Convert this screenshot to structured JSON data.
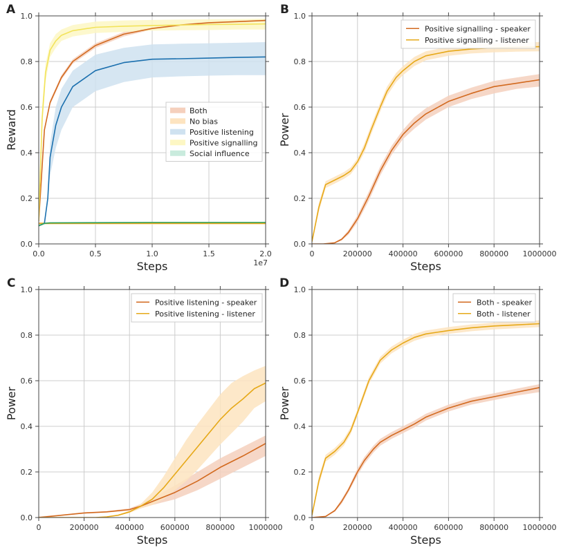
{
  "chart_data": [
    {
      "panel": "A",
      "type": "line",
      "xlabel": "Steps",
      "ylabel": "Reward",
      "x_offset_label": "1e7",
      "xlim": [
        0,
        2.0
      ],
      "ylim": [
        0,
        1.0
      ],
      "xticks": [
        "0.0",
        "0.5",
        "1.0",
        "1.5",
        "2.0"
      ],
      "yticks": [
        "0.0",
        "0.2",
        "0.4",
        "0.6",
        "0.8",
        "1.0"
      ],
      "grid": true,
      "legend_position": "center-right",
      "legend": [
        {
          "label": "Both",
          "color": "#f5d0bd"
        },
        {
          "label": "No bias",
          "color": "#fde4c0"
        },
        {
          "label": "Positive listening",
          "color": "#cfe2f0"
        },
        {
          "label": "Positive signalling",
          "color": "#fdf7c4"
        },
        {
          "label": "Social influence",
          "color": "#c9ebdd"
        }
      ],
      "series": [
        {
          "name": "Both",
          "color": "#d2691e",
          "band": "#f5d0bd",
          "x": [
            0,
            0.05,
            0.1,
            0.2,
            0.3,
            0.5,
            0.75,
            1.0,
            1.25,
            1.5,
            1.75,
            2.0
          ],
          "y": [
            0.1,
            0.5,
            0.62,
            0.73,
            0.8,
            0.87,
            0.92,
            0.945,
            0.96,
            0.97,
            0.975,
            0.98
          ],
          "lo": [
            0.09,
            0.49,
            0.61,
            0.72,
            0.79,
            0.86,
            0.91,
            0.94,
            0.955,
            0.965,
            0.97,
            0.975
          ],
          "hi": [
            0.11,
            0.51,
            0.63,
            0.74,
            0.81,
            0.88,
            0.93,
            0.95,
            0.965,
            0.975,
            0.98,
            0.985
          ]
        },
        {
          "name": "No bias",
          "color": "#e6a817",
          "band": "#fde4c0",
          "x": [
            0,
            2.0
          ],
          "y": [
            0.09,
            0.09
          ],
          "lo": [
            0.085,
            0.085
          ],
          "hi": [
            0.095,
            0.095
          ]
        },
        {
          "name": "Positive listening",
          "color": "#1a6fae",
          "band": "#cfe2f0",
          "x": [
            0,
            0.05,
            0.08,
            0.1,
            0.15,
            0.2,
            0.3,
            0.5,
            0.75,
            1.0,
            1.25,
            1.5,
            1.75,
            2.0
          ],
          "y": [
            0.08,
            0.09,
            0.2,
            0.38,
            0.52,
            0.6,
            0.69,
            0.76,
            0.795,
            0.81,
            0.812,
            0.815,
            0.818,
            0.82
          ],
          "lo": [
            0.075,
            0.085,
            0.18,
            0.3,
            0.42,
            0.5,
            0.6,
            0.67,
            0.71,
            0.73,
            0.735,
            0.738,
            0.74,
            0.74
          ],
          "hi": [
            0.085,
            0.095,
            0.22,
            0.44,
            0.6,
            0.68,
            0.76,
            0.83,
            0.86,
            0.875,
            0.878,
            0.88,
            0.882,
            0.885
          ]
        },
        {
          "name": "Positive signalling",
          "color": "#f2e35a",
          "band": "#fdf7c4",
          "x": [
            0,
            0.03,
            0.06,
            0.1,
            0.15,
            0.2,
            0.3,
            0.5,
            0.75,
            1.0,
            1.25,
            1.5,
            1.75,
            2.0
          ],
          "y": [
            0.1,
            0.55,
            0.75,
            0.85,
            0.89,
            0.915,
            0.935,
            0.95,
            0.955,
            0.958,
            0.96,
            0.962,
            0.963,
            0.965
          ],
          "lo": [
            0.09,
            0.5,
            0.71,
            0.82,
            0.86,
            0.89,
            0.91,
            0.925,
            0.93,
            0.935,
            0.937,
            0.938,
            0.94,
            0.94
          ],
          "hi": [
            0.11,
            0.6,
            0.79,
            0.88,
            0.92,
            0.94,
            0.96,
            0.975,
            0.98,
            0.982,
            0.984,
            0.985,
            0.986,
            0.988
          ]
        },
        {
          "name": "Social influence",
          "color": "#2ca05a",
          "band": "#c9ebdd",
          "x": [
            0,
            0.05,
            0.1,
            0.5,
            1.0,
            1.5,
            2.0
          ],
          "y": [
            0.08,
            0.09,
            0.092,
            0.093,
            0.094,
            0.094,
            0.094
          ],
          "lo": [
            0.075,
            0.086,
            0.089,
            0.09,
            0.091,
            0.091,
            0.091
          ],
          "hi": [
            0.085,
            0.094,
            0.095,
            0.096,
            0.097,
            0.097,
            0.097
          ]
        }
      ]
    },
    {
      "panel": "B",
      "type": "line",
      "xlabel": "Steps",
      "ylabel": "Power",
      "xlim": [
        0,
        1000000
      ],
      "ylim": [
        0,
        1.0
      ],
      "xticks": [
        "0",
        "200000",
        "400000",
        "600000",
        "800000",
        "1000000"
      ],
      "yticks": [
        "0.0",
        "0.2",
        "0.4",
        "0.6",
        "0.8",
        "1.0"
      ],
      "grid": true,
      "legend_position": "top-right",
      "series": [
        {
          "name": "Positive signalling - speaker",
          "color": "#d2691e",
          "band": "#f5d0bd",
          "x": [
            0,
            50000,
            100000,
            130000,
            160000,
            200000,
            250000,
            300000,
            350000,
            400000,
            450000,
            500000,
            600000,
            700000,
            800000,
            900000,
            1000000
          ],
          "y": [
            0,
            0,
            0.005,
            0.02,
            0.05,
            0.11,
            0.21,
            0.32,
            0.41,
            0.48,
            0.53,
            0.57,
            0.625,
            0.66,
            0.69,
            0.705,
            0.72
          ],
          "lo": [
            0,
            0,
            0.003,
            0.015,
            0.04,
            0.095,
            0.19,
            0.3,
            0.39,
            0.46,
            0.505,
            0.545,
            0.6,
            0.635,
            0.66,
            0.68,
            0.69
          ],
          "hi": [
            0,
            0,
            0.007,
            0.025,
            0.06,
            0.125,
            0.23,
            0.34,
            0.43,
            0.5,
            0.555,
            0.595,
            0.65,
            0.685,
            0.715,
            0.73,
            0.745
          ]
        },
        {
          "name": "Positive signalling - listener",
          "color": "#e6a817",
          "band": "#fde4c0",
          "x": [
            0,
            30000,
            60000,
            100000,
            140000,
            170000,
            200000,
            230000,
            260000,
            300000,
            330000,
            370000,
            400000,
            450000,
            500000,
            600000,
            700000,
            800000,
            900000,
            1000000
          ],
          "y": [
            0.01,
            0.16,
            0.26,
            0.28,
            0.3,
            0.32,
            0.36,
            0.42,
            0.5,
            0.6,
            0.67,
            0.73,
            0.76,
            0.8,
            0.825,
            0.845,
            0.855,
            0.86,
            0.863,
            0.865
          ],
          "lo": [
            0.005,
            0.14,
            0.245,
            0.265,
            0.285,
            0.305,
            0.345,
            0.4,
            0.48,
            0.58,
            0.65,
            0.71,
            0.74,
            0.78,
            0.805,
            0.825,
            0.835,
            0.84,
            0.843,
            0.845
          ],
          "hi": [
            0.015,
            0.18,
            0.275,
            0.295,
            0.315,
            0.335,
            0.375,
            0.44,
            0.52,
            0.62,
            0.69,
            0.75,
            0.78,
            0.82,
            0.845,
            0.865,
            0.875,
            0.88,
            0.883,
            0.885
          ]
        }
      ]
    },
    {
      "panel": "C",
      "type": "line",
      "xlabel": "Steps",
      "ylabel": "Power",
      "xlim": [
        0,
        1000000
      ],
      "ylim": [
        0,
        1.0
      ],
      "xticks": [
        "0",
        "200000",
        "400000",
        "600000",
        "800000",
        "1000000"
      ],
      "yticks": [
        "0.0",
        "0.2",
        "0.4",
        "0.6",
        "0.8",
        "1.0"
      ],
      "grid": true,
      "legend_position": "top-right",
      "series": [
        {
          "name": "Positive listening - speaker",
          "color": "#d2691e",
          "band": "#f5d0bd",
          "x": [
            0,
            100000,
            200000,
            300000,
            400000,
            450000,
            500000,
            600000,
            700000,
            800000,
            900000,
            1000000
          ],
          "y": [
            0,
            0.01,
            0.02,
            0.025,
            0.035,
            0.05,
            0.07,
            0.11,
            0.16,
            0.22,
            0.27,
            0.325
          ],
          "lo": [
            0,
            0.008,
            0.017,
            0.022,
            0.03,
            0.04,
            0.055,
            0.08,
            0.12,
            0.17,
            0.22,
            0.27
          ],
          "hi": [
            0.005,
            0.012,
            0.023,
            0.028,
            0.04,
            0.06,
            0.085,
            0.14,
            0.2,
            0.26,
            0.31,
            0.36
          ]
        },
        {
          "name": "Positive listening - listener",
          "color": "#e6a817",
          "band": "#fde4c0",
          "x": [
            0,
            250000,
            300000,
            350000,
            400000,
            450000,
            500000,
            550000,
            600000,
            650000,
            700000,
            800000,
            850000,
            900000,
            950000,
            1000000
          ],
          "y": [
            0,
            0,
            0.003,
            0.01,
            0.025,
            0.05,
            0.08,
            0.13,
            0.19,
            0.25,
            0.31,
            0.43,
            0.48,
            0.52,
            0.565,
            0.59
          ],
          "lo": [
            0,
            0,
            0.002,
            0.008,
            0.02,
            0.04,
            0.055,
            0.08,
            0.12,
            0.16,
            0.21,
            0.32,
            0.37,
            0.42,
            0.48,
            0.51
          ],
          "hi": [
            0.002,
            0.002,
            0.005,
            0.013,
            0.03,
            0.06,
            0.11,
            0.18,
            0.26,
            0.34,
            0.41,
            0.54,
            0.59,
            0.62,
            0.645,
            0.665
          ]
        }
      ]
    },
    {
      "panel": "D",
      "type": "line",
      "xlabel": "Steps",
      "ylabel": "Power",
      "xlim": [
        0,
        1000000
      ],
      "ylim": [
        0,
        1.0
      ],
      "xticks": [
        "0",
        "200000",
        "400000",
        "600000",
        "800000",
        "1000000"
      ],
      "yticks": [
        "0.0",
        "0.2",
        "0.4",
        "0.6",
        "0.8",
        "1.0"
      ],
      "grid": true,
      "legend_position": "top-right",
      "series": [
        {
          "name": "Both - speaker",
          "color": "#d2691e",
          "band": "#f5d0bd",
          "x": [
            0,
            60000,
            100000,
            130000,
            160000,
            200000,
            230000,
            270000,
            300000,
            350000,
            400000,
            450000,
            500000,
            600000,
            700000,
            800000,
            900000,
            1000000
          ],
          "y": [
            0,
            0.005,
            0.03,
            0.07,
            0.12,
            0.2,
            0.25,
            0.3,
            0.33,
            0.36,
            0.385,
            0.41,
            0.44,
            0.48,
            0.51,
            0.53,
            0.55,
            0.57
          ],
          "lo": [
            0,
            0.003,
            0.025,
            0.06,
            0.11,
            0.185,
            0.235,
            0.285,
            0.315,
            0.345,
            0.37,
            0.395,
            0.425,
            0.465,
            0.495,
            0.515,
            0.535,
            0.55
          ],
          "hi": [
            0.002,
            0.007,
            0.035,
            0.08,
            0.13,
            0.215,
            0.265,
            0.315,
            0.345,
            0.375,
            0.4,
            0.425,
            0.455,
            0.495,
            0.525,
            0.545,
            0.565,
            0.585
          ]
        },
        {
          "name": "Both - listener",
          "color": "#e6a817",
          "band": "#fde4c0",
          "x": [
            0,
            30000,
            60000,
            100000,
            140000,
            170000,
            200000,
            250000,
            300000,
            350000,
            400000,
            450000,
            500000,
            600000,
            700000,
            800000,
            900000,
            1000000
          ],
          "y": [
            0.01,
            0.16,
            0.26,
            0.29,
            0.33,
            0.38,
            0.46,
            0.6,
            0.69,
            0.735,
            0.765,
            0.79,
            0.805,
            0.82,
            0.832,
            0.84,
            0.845,
            0.85
          ],
          "lo": [
            0.005,
            0.14,
            0.245,
            0.275,
            0.315,
            0.365,
            0.445,
            0.585,
            0.675,
            0.72,
            0.75,
            0.775,
            0.79,
            0.805,
            0.817,
            0.825,
            0.83,
            0.835
          ],
          "hi": [
            0.015,
            0.18,
            0.275,
            0.305,
            0.345,
            0.395,
            0.475,
            0.615,
            0.705,
            0.75,
            0.78,
            0.805,
            0.82,
            0.835,
            0.847,
            0.855,
            0.86,
            0.865
          ]
        }
      ]
    }
  ]
}
